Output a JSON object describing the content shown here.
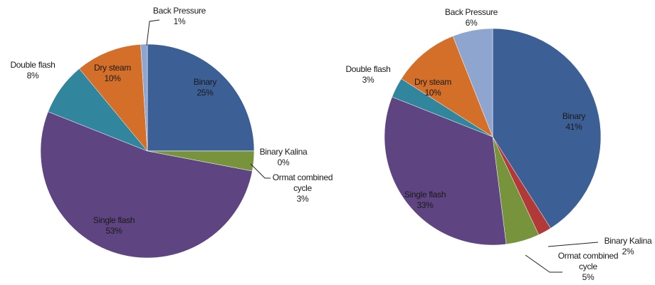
{
  "chart_data": [
    {
      "type": "pie",
      "categories": [
        "Binary",
        "Binary Kalina",
        "Ormat combined cycle",
        "Single flash",
        "Double flash",
        "Dry steam",
        "Back Pressure"
      ],
      "values": [
        25,
        0,
        3,
        53,
        8,
        10,
        1
      ],
      "value_labels": [
        "25%",
        "0%",
        "3%",
        "53%",
        "8%",
        "10%",
        "1%"
      ],
      "colors": [
        "#3c5f96",
        "#b13a38",
        "#77933c",
        "#5e4480",
        "#31859c",
        "#d46f2a",
        "#8ea5d0"
      ]
    },
    {
      "type": "pie",
      "categories": [
        "Binary",
        "Binary Kalina",
        "Ormat combined cycle",
        "Single flash",
        "Double flash",
        "Dry steam",
        "Back Pressure"
      ],
      "values": [
        41,
        2,
        5,
        33,
        3,
        10,
        6
      ],
      "value_labels": [
        "41%",
        "2%",
        "5%",
        "33%",
        "3%",
        "10%",
        "6%"
      ],
      "colors": [
        "#3c5f96",
        "#b13a38",
        "#77933c",
        "#5e4480",
        "#31859c",
        "#d46f2a",
        "#8ea5d0"
      ]
    }
  ]
}
